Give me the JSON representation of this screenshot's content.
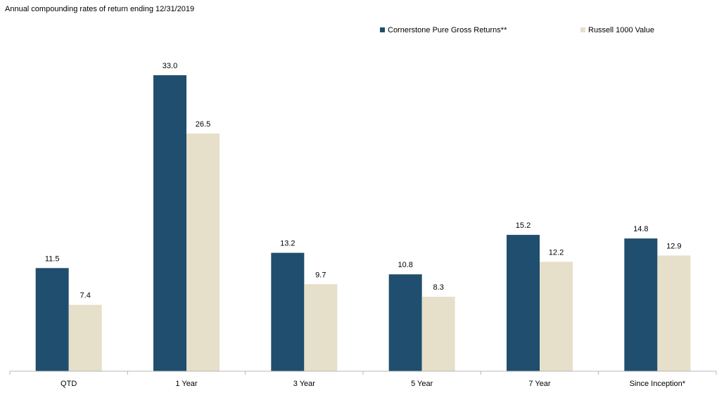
{
  "chart_data": {
    "type": "bar",
    "title": "Annual compounding rates of return ending 12/31/2019",
    "categories": [
      "QTD",
      "1 Year",
      "3 Year",
      "5 Year",
      "7 Year",
      "Since Inception*"
    ],
    "series": [
      {
        "name": "Cornerstone Pure Gross Returns**",
        "color": "#1f4e6e",
        "values": [
          11.5,
          33.0,
          13.2,
          10.8,
          15.2,
          14.8
        ],
        "labels": [
          "11.5",
          "33.0",
          "13.2",
          "10.8",
          "15.2",
          "14.8"
        ]
      },
      {
        "name": "Russell 1000 Value",
        "color": "#e6dfc9",
        "values": [
          7.4,
          26.5,
          9.7,
          8.3,
          12.2,
          12.9
        ],
        "labels": [
          "7.4",
          "26.5",
          "9.7",
          "8.3",
          "12.2",
          "12.9"
        ]
      }
    ],
    "ylim": [
      0,
      33.0
    ],
    "xlabel": "",
    "ylabel": "",
    "grid": false,
    "legend_position": "top-right"
  }
}
